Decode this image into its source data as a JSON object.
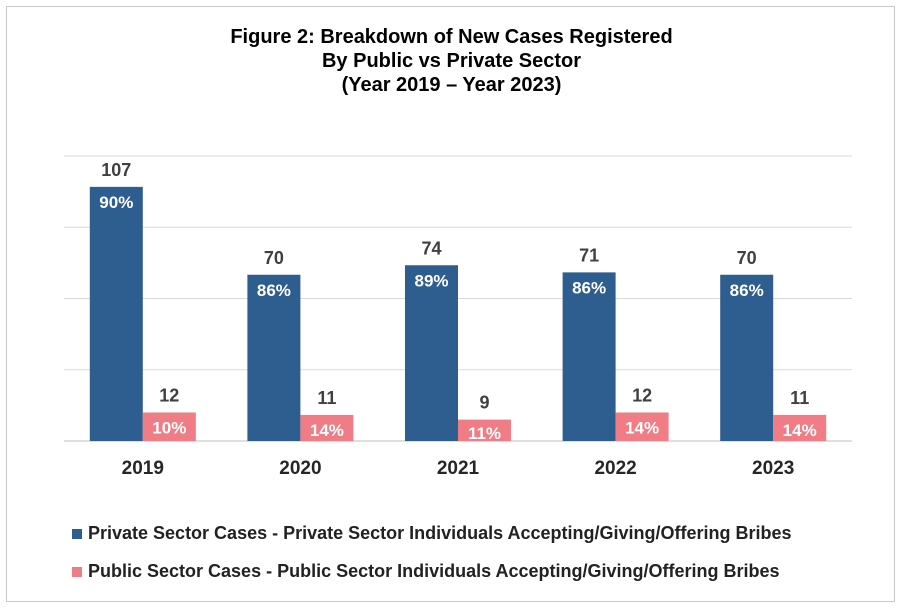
{
  "title_lines": [
    "Figure 2: Breakdown of New Cases Registered",
    "By Public vs Private Sector",
    "(Year 2019 – Year 2023)"
  ],
  "colors": {
    "private": "#2e5d8f",
    "public": "#f07c85",
    "grid": "#d9d9d9",
    "axis_text": "#262626"
  },
  "chart_data": {
    "type": "bar",
    "title": "Figure 2: Breakdown of New Cases Registered By Public vs Private Sector (Year 2019 – Year 2023)",
    "categories": [
      "2019",
      "2020",
      "2021",
      "2022",
      "2023"
    ],
    "series": [
      {
        "name": "Private Sector Cases - Private Sector Individuals Accepting/Giving/Offering Bribes",
        "values": [
          107,
          70,
          74,
          71,
          70
        ],
        "percent_labels": [
          "90%",
          "86%",
          "89%",
          "86%",
          "86%"
        ]
      },
      {
        "name": "Public Sector Cases - Public Sector Individuals Accepting/Giving/Offering Bribes",
        "values": [
          12,
          11,
          9,
          12,
          11
        ],
        "percent_labels": [
          "10%",
          "14%",
          "11%",
          "14%",
          "14%"
        ]
      }
    ],
    "ylim": [
      0,
      120
    ],
    "grid": true,
    "y_tick_labels_shown": false,
    "legend_position": "bottom"
  }
}
